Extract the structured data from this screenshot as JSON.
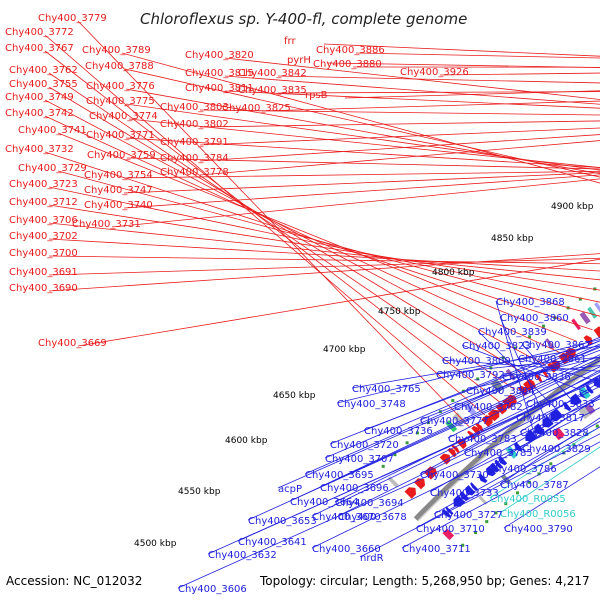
{
  "title": "Chloroflexus sp. Y-400-fl, complete genome",
  "accession": "Accession: NC_012032",
  "topology": "Topology: circular; Length: 5,268,950 bp; Genes: 4,217",
  "colors": {
    "forward": "#e81c1c",
    "reverse": "#2020e0",
    "rna": "#33cccc",
    "backbone": "#888888",
    "gc_dots": "#3a9b3a"
  },
  "kbp_ticks": [
    "4500 kbp",
    "4550 kbp",
    "4600 kbp",
    "4650 kbp",
    "4700 kbp",
    "4750 kbp",
    "4800 kbp",
    "4850 kbp",
    "4900 kbp"
  ],
  "top_labels": [
    "Chy400_3779",
    "Chy400_3772",
    "Chy400_3767",
    "Chy400_3762",
    "Chy400_3755",
    "Chy400_3749",
    "Chy400_3742",
    "Chy400_3741",
    "Chy400_3732",
    "Chy400_3729",
    "Chy400_3723",
    "Chy400_3712",
    "Chy400_3706",
    "Chy400_3702",
    "Chy400_3700",
    "Chy400_3691",
    "Chy400_3690",
    "Chy400_3669",
    "Chy400_3789",
    "Chy400_3788",
    "Chy400_3776",
    "Chy400_3775",
    "Chy400_3774",
    "Chy400_3771",
    "Chy400_3759",
    "Chy400_3754",
    "Chy400_3747",
    "Chy400_3740",
    "Chy400_3731",
    "Chy400_3820",
    "Chy400_3815",
    "Chy400_3811",
    "Chy400_3803",
    "Chy400_3802",
    "Chy400_3791",
    "Chy400_3784",
    "Chy400_3778",
    "Chy400_3842",
    "Chy400_3835",
    "Chy400_3825",
    "frr",
    "pyrH",
    "rpsB",
    "Chy400_3886",
    "Chy400_3880",
    "Chy400_3926"
  ],
  "bottom_labels": [
    "Chy400_3868",
    "Chy400_3860",
    "Chy400_3839",
    "Chy400_3867",
    "Chy400_3823",
    "Chy400_3861",
    "Chy400_3809",
    "Chy400_3836",
    "Chy400_3792",
    "Chy400_3804",
    "Chy400_3765",
    "Chy400_3833",
    "Chy400_3748",
    "Chy400_3782",
    "Chy400_3817",
    "Chy400_3777",
    "Chy400_3736",
    "Chy400_3828",
    "Chy400_3783",
    "Chy400_3720",
    "Chy400_3829",
    "Chy400_3785",
    "Chy400_3707",
    "Chy400_3786",
    "Chy400_3695",
    "Chy400_3730",
    "Chy400_3696",
    "Chy400_3787",
    "acpP",
    "Chy400_3733",
    "Chy400_R0055",
    "Chy400_3664",
    "Chy400_3694",
    "Chy400_R0056",
    "Chy400_3653",
    "Chy400_3670",
    "Chy400_3678",
    "Chy400_3727",
    "Chy400_3790",
    "Chy400_3710",
    "Chy400_3641",
    "Chy400_3632",
    "Chy400_3660",
    "Chy400_3711",
    "nrdR",
    "Chy400_3606"
  ]
}
